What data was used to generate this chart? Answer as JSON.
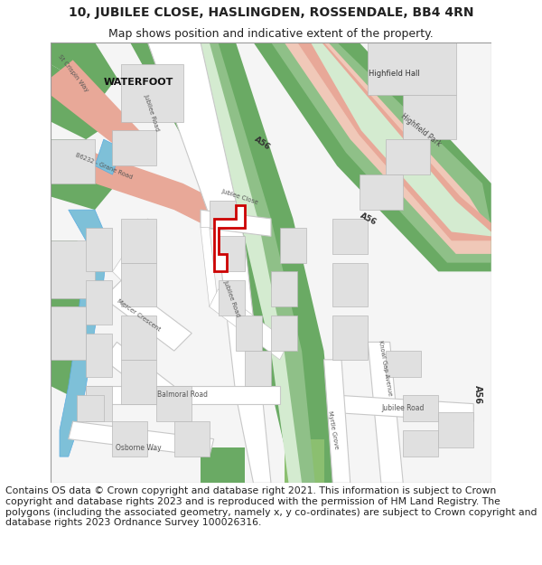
{
  "title_line1": "10, JUBILEE CLOSE, HASLINGDEN, ROSSENDALE, BB4 4RN",
  "title_line2": "Map shows position and indicative extent of the property.",
  "footer_text": "Contains OS data © Crown copyright and database right 2021. This information is subject to Crown copyright and database rights 2023 and is reproduced with the permission of HM Land Registry. The polygons (including the associated geometry, namely x, y co-ordinates) are subject to Crown copyright and database rights 2023 Ordnance Survey 100026316.",
  "title_fontsize": 10,
  "subtitle_fontsize": 9,
  "footer_fontsize": 7.8,
  "bg": "#ffffff",
  "map_bg": "#f5f5f5",
  "green_dark": "#6aaa64",
  "green_mid": "#8fc088",
  "green_light": "#b8d9b0",
  "green_pale": "#d4ebd0",
  "pink_dark": "#e8a898",
  "pink_light": "#f0c8b8",
  "blue": "#7ec0d8",
  "bldg_fill": "#e0e0e0",
  "bldg_edge": "#b8b8b8",
  "road_fill": "#ffffff",
  "road_edge": "#c8c8c8",
  "plot_edge": "#cc0000",
  "plot_fill": "#ffffff",
  "text_dark": "#222222",
  "text_mid": "#555555"
}
